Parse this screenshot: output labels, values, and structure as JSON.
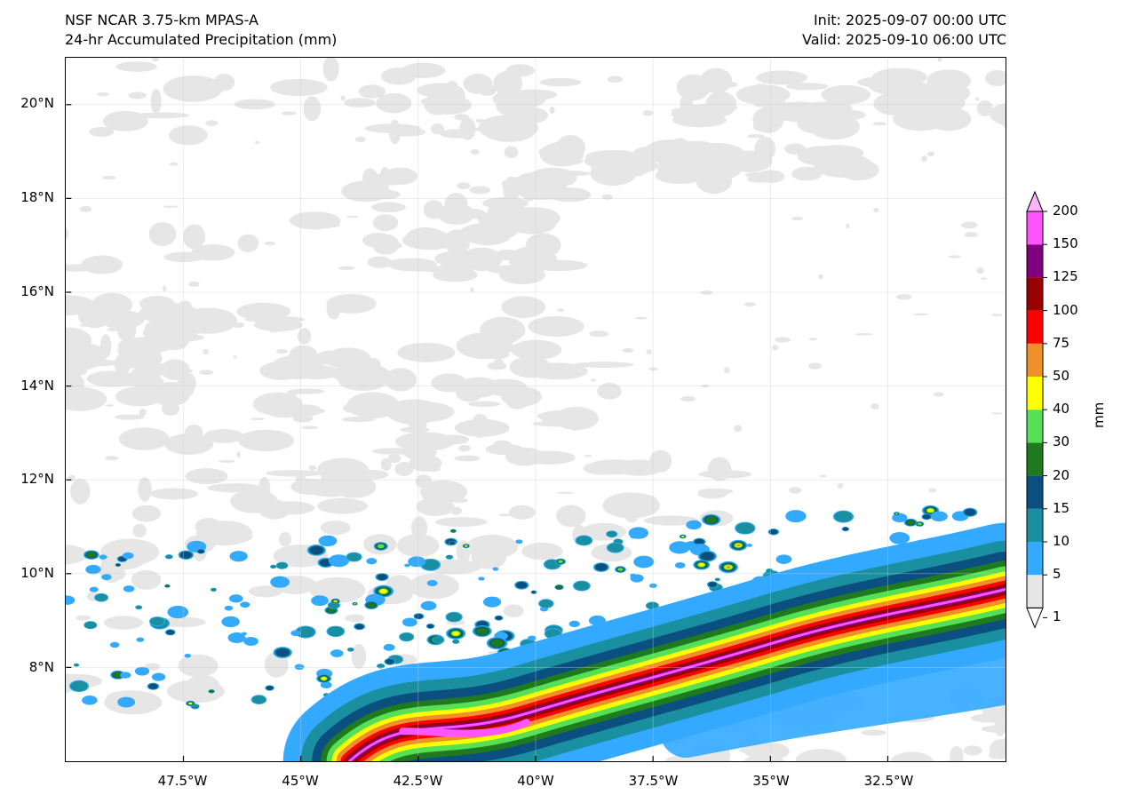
{
  "header": {
    "model": "NSF NCAR 3.75-km MPAS-A",
    "field": "24-hr Accumulated Precipitation (mm)",
    "init": "Init: 2025-09-07 00:00 UTC",
    "valid": "Valid: 2025-09-10 06:00 UTC"
  },
  "map": {
    "lon_range": [
      -50,
      -30
    ],
    "lat_range": [
      6,
      21
    ],
    "lon_ticks": [
      {
        "value": -47.5,
        "label": "47.5°W"
      },
      {
        "value": -45,
        "label": "45°W"
      },
      {
        "value": -42.5,
        "label": "42.5°W"
      },
      {
        "value": -40,
        "label": "40°W"
      },
      {
        "value": -37.5,
        "label": "37.5°W"
      },
      {
        "value": -35,
        "label": "35°W"
      },
      {
        "value": -32.5,
        "label": "32.5°W"
      }
    ],
    "lat_ticks": [
      {
        "value": 20,
        "label": "20°N"
      },
      {
        "value": 18,
        "label": "18°N"
      },
      {
        "value": 16,
        "label": "16°N"
      },
      {
        "value": 14,
        "label": "14°N"
      },
      {
        "value": 12,
        "label": "12°N"
      },
      {
        "value": 10,
        "label": "10°N"
      },
      {
        "value": 8,
        "label": "8°N"
      }
    ]
  },
  "colorbar": {
    "unit": "mm",
    "levels": [
      "1",
      "5",
      "10",
      "15",
      "20",
      "30",
      "40",
      "50",
      "75",
      "100",
      "125",
      "150",
      "200"
    ],
    "colors": [
      "#e6e6e6",
      "#33aaff",
      "#1a8fa0",
      "#0a4f80",
      "#1f7a1f",
      "#55e055",
      "#ffff00",
      "#f0902a",
      "#ff0000",
      "#990000",
      "#800080",
      "#ff55ff"
    ],
    "over_color": "#ffb3ff",
    "under_color": "#ffffff"
  }
}
